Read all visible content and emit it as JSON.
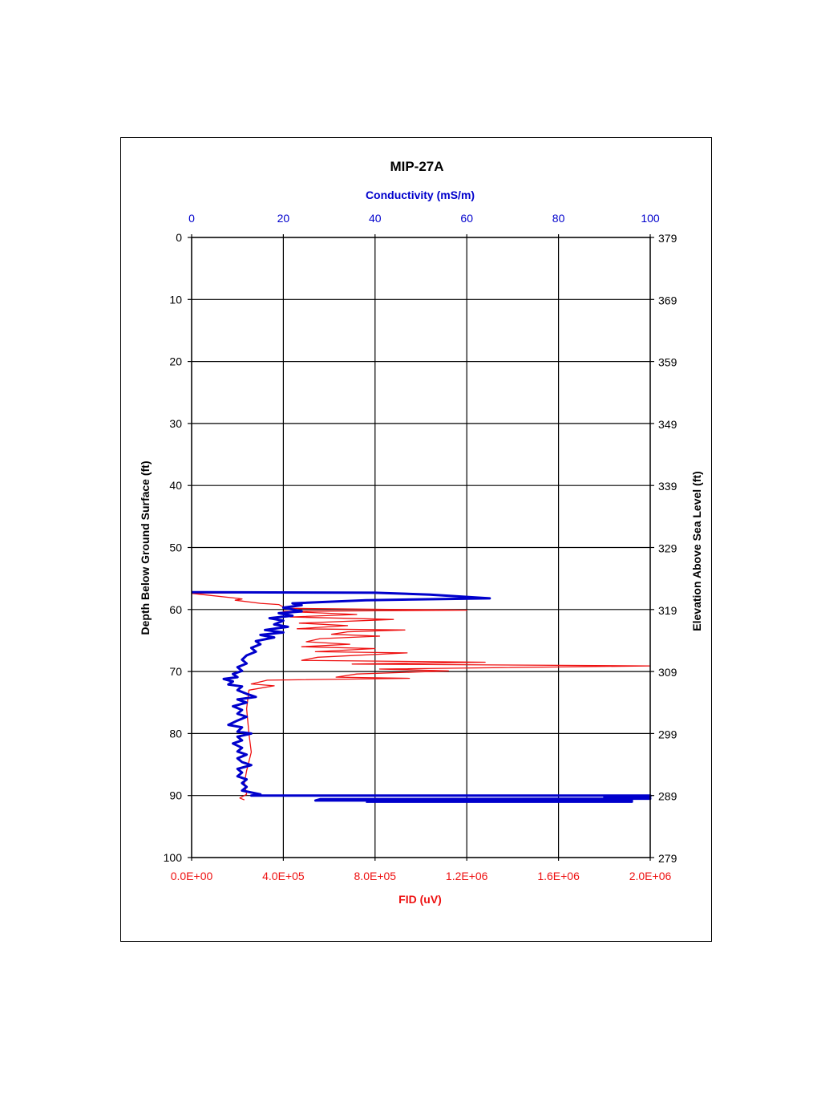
{
  "chart_data": {
    "type": "line",
    "title": "MIP-27A",
    "top_axis": {
      "label": "Conductivity (mS/m)",
      "range": [
        0,
        100
      ],
      "ticks": [
        "0",
        "20",
        "40",
        "60",
        "80",
        "100"
      ],
      "color": "#0000cc"
    },
    "bottom_axis": {
      "label": "FID (uV)",
      "range": [
        0,
        2000000
      ],
      "ticks": [
        "0.0E+00",
        "4.0E+05",
        "8.0E+05",
        "1.2E+06",
        "1.6E+06",
        "2.0E+06"
      ],
      "color": "#ee1111"
    },
    "left_axis": {
      "label": "Depth Below Ground Surface (ft)",
      "range": [
        0,
        100
      ],
      "inverted": true,
      "ticks": [
        "0",
        "10",
        "20",
        "30",
        "40",
        "50",
        "60",
        "70",
        "80",
        "90",
        "100"
      ]
    },
    "right_axis": {
      "label": "Elevation Above Sea Level (ft)",
      "range": [
        379,
        279
      ],
      "ticks": [
        "379",
        "369",
        "359",
        "349",
        "339",
        "329",
        "319",
        "309",
        "299",
        "289",
        "279"
      ]
    },
    "grid": true,
    "series": [
      {
        "axis": "bottom",
        "color": "#ee1111",
        "points": [
          [
            0,
            57.2
          ],
          [
            430000,
            57.2
          ],
          [
            0,
            57.4
          ],
          [
            200000,
            58.2
          ],
          [
            220000,
            58.3
          ],
          [
            190000,
            58.5
          ],
          [
            300000,
            59.0
          ],
          [
            380000,
            59.2
          ],
          [
            410000,
            59.8
          ],
          [
            1200000,
            60.1
          ],
          [
            400000,
            60.3
          ],
          [
            720000,
            60.8
          ],
          [
            430000,
            61.2
          ],
          [
            880000,
            61.6
          ],
          [
            470000,
            62.2
          ],
          [
            680000,
            62.6
          ],
          [
            460000,
            63.1
          ],
          [
            930000,
            63.3
          ],
          [
            680000,
            63.6
          ],
          [
            610000,
            64.0
          ],
          [
            820000,
            64.3
          ],
          [
            560000,
            64.7
          ],
          [
            500000,
            65.2
          ],
          [
            690000,
            65.6
          ],
          [
            480000,
            66.0
          ],
          [
            800000,
            66.3
          ],
          [
            540000,
            66.8
          ],
          [
            940000,
            67.0
          ],
          [
            550000,
            67.7
          ],
          [
            480000,
            68.2
          ],
          [
            1280000,
            68.5
          ],
          [
            700000,
            68.8
          ],
          [
            2000000,
            69.1
          ],
          [
            820000,
            69.6
          ],
          [
            1120000,
            69.9
          ],
          [
            720000,
            70.4
          ],
          [
            630000,
            70.9
          ],
          [
            950000,
            71.1
          ],
          [
            330000,
            71.4
          ],
          [
            260000,
            72.0
          ],
          [
            360000,
            72.3
          ],
          [
            250000,
            73.0
          ],
          [
            240000,
            76.0
          ],
          [
            250000,
            80.0
          ],
          [
            260000,
            83.0
          ],
          [
            240000,
            86.0
          ],
          [
            230000,
            88.0
          ],
          [
            240000,
            89.8
          ],
          [
            210000,
            90.4
          ],
          [
            230000,
            90.7
          ]
        ]
      },
      {
        "axis": "top",
        "color": "#0000cc",
        "points": [
          [
            0,
            57.2
          ],
          [
            40,
            57.3
          ],
          [
            52,
            57.6
          ],
          [
            65,
            58.2
          ],
          [
            38,
            58.5
          ],
          [
            22,
            59.0
          ],
          [
            24,
            59.3
          ],
          [
            20,
            59.7
          ],
          [
            22,
            60.0
          ],
          [
            24,
            60.3
          ],
          [
            19,
            60.6
          ],
          [
            22,
            61.0
          ],
          [
            17,
            61.4
          ],
          [
            20,
            61.8
          ],
          [
            18,
            62.4
          ],
          [
            21,
            62.8
          ],
          [
            16,
            63.3
          ],
          [
            20,
            63.7
          ],
          [
            15,
            64.1
          ],
          [
            18,
            64.5
          ],
          [
            14,
            65.1
          ],
          [
            15,
            65.6
          ],
          [
            13,
            66.2
          ],
          [
            14,
            66.8
          ],
          [
            12,
            67.4
          ],
          [
            11,
            68.1
          ],
          [
            12,
            68.7
          ],
          [
            10,
            69.3
          ],
          [
            11,
            69.9
          ],
          [
            9,
            70.4
          ],
          [
            10,
            70.9
          ],
          [
            7,
            71.2
          ],
          [
            9,
            71.6
          ],
          [
            8,
            72.1
          ],
          [
            11,
            72.4
          ],
          [
            10,
            73.0
          ],
          [
            12,
            73.6
          ],
          [
            14,
            74.1
          ],
          [
            10,
            74.5
          ],
          [
            12,
            75.0
          ],
          [
            9,
            75.6
          ],
          [
            11,
            76.2
          ],
          [
            10,
            76.8
          ],
          [
            12,
            77.3
          ],
          [
            10,
            77.9
          ],
          [
            8,
            78.6
          ],
          [
            11,
            79.0
          ],
          [
            10,
            79.7
          ],
          [
            13,
            80.0
          ],
          [
            10,
            80.5
          ],
          [
            11,
            81.1
          ],
          [
            9,
            81.6
          ],
          [
            11,
            82.3
          ],
          [
            10,
            82.9
          ],
          [
            12,
            83.4
          ],
          [
            10,
            84.0
          ],
          [
            11,
            84.6
          ],
          [
            13,
            85.1
          ],
          [
            10,
            85.7
          ],
          [
            11,
            86.3
          ],
          [
            10,
            86.9
          ],
          [
            12,
            87.4
          ],
          [
            11,
            88.0
          ],
          [
            12,
            88.6
          ],
          [
            11,
            89.2
          ],
          [
            15,
            89.8
          ],
          [
            13,
            90.0
          ],
          [
            100,
            90.0
          ],
          [
            100,
            90.2
          ],
          [
            90,
            90.3
          ],
          [
            100,
            90.5
          ],
          [
            28,
            90.6
          ],
          [
            27,
            90.8
          ],
          [
            96,
            90.8
          ],
          [
            96,
            91.0
          ],
          [
            38,
            91.0
          ]
        ]
      }
    ]
  }
}
